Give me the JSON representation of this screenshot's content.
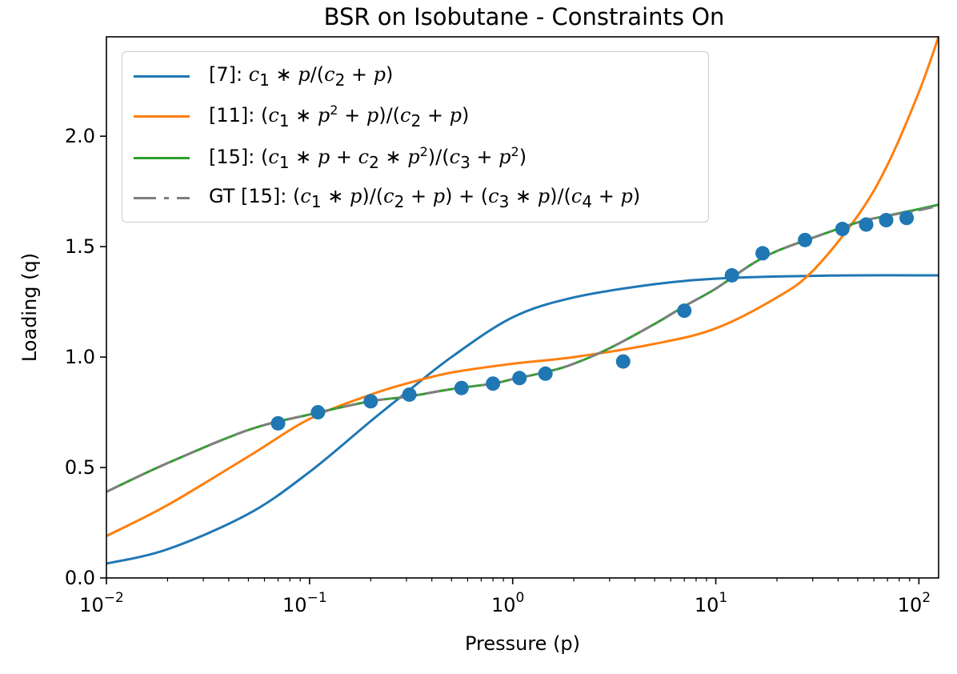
{
  "chart_data": {
    "type": "line",
    "title": "BSR on Isobutane - Constraints On",
    "xlabel": "Pressure (p)",
    "ylabel": "Loading (q)",
    "xscale": "log",
    "xlim": [
      0.01,
      125
    ],
    "ylim": [
      0.0,
      2.45
    ],
    "grid": false,
    "legend_position": "upper-left",
    "x_ticks": [
      0.01,
      0.1,
      1,
      10,
      100
    ],
    "x_tick_labels": [
      {
        "base": "10",
        "exp": "−2"
      },
      {
        "base": "10",
        "exp": "−1"
      },
      {
        "base": "10",
        "exp": "0"
      },
      {
        "base": "10",
        "exp": "1"
      },
      {
        "base": "10",
        "exp": "2"
      }
    ],
    "y_ticks": [
      0.0,
      0.5,
      1.0,
      1.5,
      2.0
    ],
    "y_tick_labels": [
      "0.0",
      "0.5",
      "1.0",
      "1.5",
      "2.0"
    ],
    "scatter": {
      "color": "#1f77b4",
      "x": [
        0.07,
        0.11,
        0.2,
        0.31,
        0.56,
        0.8,
        1.08,
        1.45,
        3.5,
        7.0,
        12.0,
        17.0,
        27.5,
        42.0,
        55.0,
        69.0,
        87.0
      ],
      "y": [
        0.7,
        0.75,
        0.8,
        0.83,
        0.86,
        0.88,
        0.905,
        0.925,
        0.98,
        1.21,
        1.37,
        1.47,
        1.53,
        1.58,
        1.6,
        1.62,
        1.63
      ]
    },
    "series": [
      {
        "color": "#1f77b4",
        "dash": "solid",
        "legend": {
          "prefix": "[7]: ",
          "formula": "c1*p/(c2+p)"
        },
        "x": [
          0.01,
          0.02,
          0.05,
          0.1,
          0.2,
          0.3,
          0.5,
          1.0,
          2.0,
          5.0,
          10.0,
          20.0,
          50.0,
          125.0
        ],
        "y": [
          0.065,
          0.13,
          0.29,
          0.48,
          0.71,
          0.84,
          1.0,
          1.18,
          1.27,
          1.33,
          1.355,
          1.365,
          1.37,
          1.37
        ]
      },
      {
        "color": "#ff7f0e",
        "dash": "solid",
        "legend": {
          "prefix": "[11]: ",
          "formula": "(c1*p^2+p)/(c2+p)"
        },
        "x": [
          0.01,
          0.02,
          0.05,
          0.1,
          0.2,
          0.3,
          0.5,
          1.0,
          2.0,
          5.0,
          10.0,
          20.0,
          30.0,
          50.0,
          70.0,
          100.0,
          125.0
        ],
        "y": [
          0.19,
          0.33,
          0.55,
          0.72,
          0.83,
          0.88,
          0.93,
          0.97,
          1.0,
          1.06,
          1.13,
          1.27,
          1.39,
          1.64,
          1.87,
          2.2,
          2.45
        ]
      },
      {
        "color": "#2ca02c",
        "dash": "solid",
        "legend": {
          "prefix": "[15]: ",
          "formula": "(c1*p+c2*p^2)/(c3+p^2)"
        },
        "x": [
          0.01,
          0.02,
          0.05,
          0.1,
          0.2,
          0.3,
          0.5,
          0.8,
          1.0,
          1.5,
          2.0,
          3.0,
          5.0,
          7.0,
          10.0,
          15.0,
          20.0,
          30.0,
          50.0,
          70.0,
          100.0,
          125.0
        ],
        "y": [
          0.39,
          0.52,
          0.67,
          0.74,
          0.8,
          0.82,
          0.855,
          0.88,
          0.9,
          0.935,
          0.97,
          1.04,
          1.15,
          1.23,
          1.31,
          1.42,
          1.48,
          1.54,
          1.61,
          1.64,
          1.67,
          1.69
        ]
      },
      {
        "color": "#7f7f7f",
        "dash": "dashdot",
        "legend": {
          "prefix": "GT [15]: ",
          "formula": "(c1*p)/(c2+p)+(c3*p)/(c4+p)"
        },
        "x": [
          0.01,
          0.02,
          0.05,
          0.1,
          0.2,
          0.3,
          0.5,
          0.8,
          1.0,
          1.5,
          2.0,
          3.0,
          5.0,
          7.0,
          10.0,
          15.0,
          20.0,
          30.0,
          50.0,
          70.0,
          100.0,
          125.0
        ],
        "y": [
          0.39,
          0.52,
          0.67,
          0.74,
          0.8,
          0.82,
          0.855,
          0.88,
          0.9,
          0.935,
          0.97,
          1.04,
          1.15,
          1.23,
          1.31,
          1.42,
          1.48,
          1.54,
          1.61,
          1.64,
          1.665,
          1.685
        ]
      }
    ]
  }
}
